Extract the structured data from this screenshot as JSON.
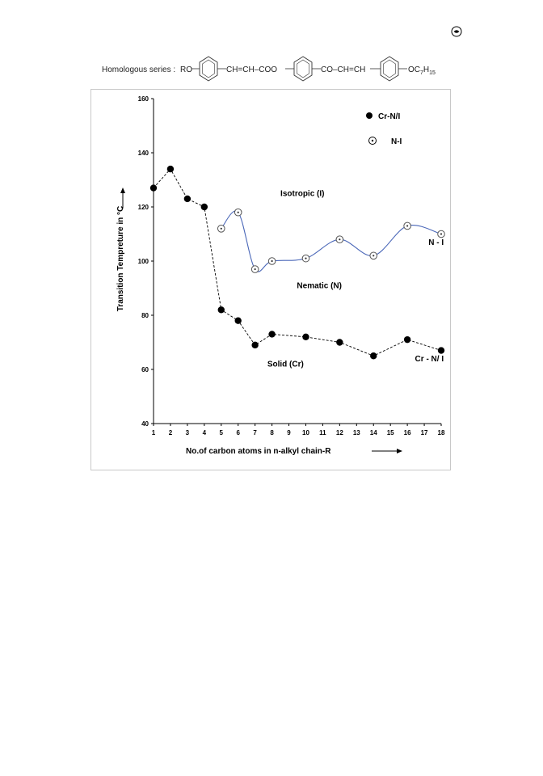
{
  "header": {
    "series_label": "Homologous series :",
    "formula_groups": [
      "RO",
      "CH=CH–COO",
      "CO–CH=CH",
      "OC",
      "7",
      "H",
      "15"
    ]
  },
  "chart_data": {
    "type": "scatter",
    "xlabel": "No.of carbon atoms in n-alkyl chain-R",
    "ylabel": "Transition Tempreture in °C",
    "x_ticks": [
      1,
      2,
      3,
      4,
      5,
      6,
      7,
      8,
      9,
      10,
      11,
      12,
      13,
      14,
      15,
      16,
      17,
      18
    ],
    "y_ticks": [
      40,
      60,
      80,
      100,
      120,
      140,
      160
    ],
    "xlim": [
      1,
      18
    ],
    "ylim": [
      40,
      160
    ],
    "grid": false,
    "legend_position": "top-right",
    "series": [
      {
        "name": "Cr-N/I",
        "marker": "filled-circle",
        "line": "dashed",
        "color": "#000000",
        "x": [
          1,
          2,
          3,
          4,
          5,
          6,
          7,
          8,
          10,
          12,
          14,
          16,
          18
        ],
        "y": [
          127,
          134,
          123,
          120,
          82,
          78,
          69,
          73,
          72,
          70,
          65,
          71,
          67
        ]
      },
      {
        "name": "N-I",
        "marker": "dotted-circle",
        "line": "smooth-solid",
        "color": "#4a67b8",
        "x": [
          5,
          6,
          7,
          8,
          10,
          12,
          14,
          16,
          18
        ],
        "y": [
          112,
          118,
          97,
          100,
          101,
          108,
          102,
          113,
          110
        ]
      }
    ],
    "annotations": [
      {
        "text": "Isotropic (I)",
        "x": 9.8,
        "y": 124
      },
      {
        "text": "Nematic (N)",
        "x": 10.8,
        "y": 90
      },
      {
        "text": "Solid (Cr)",
        "x": 8.8,
        "y": 61
      },
      {
        "text": "N - I",
        "x": 17.7,
        "y": 106
      },
      {
        "text": "Cr - N/ I",
        "x": 17.3,
        "y": 63
      }
    ]
  }
}
